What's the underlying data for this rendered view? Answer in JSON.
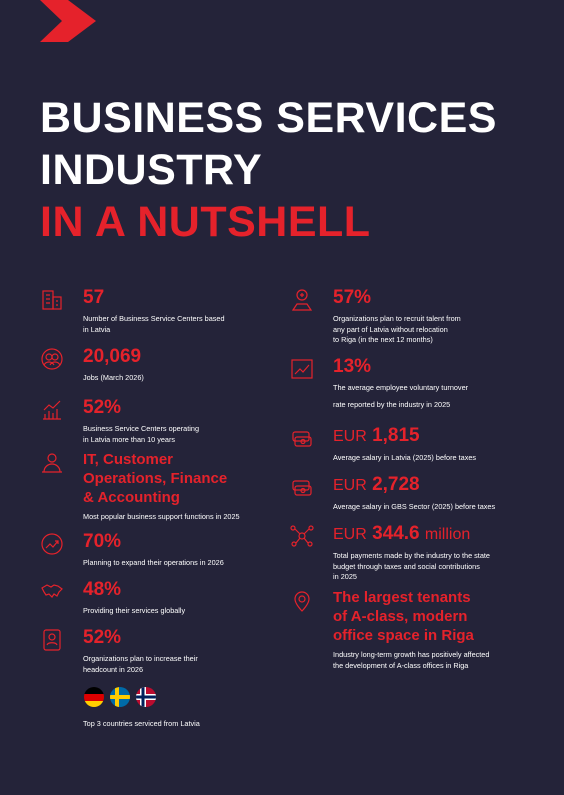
{
  "header": {
    "title_lines": [
      "BUSINESS SERVICES",
      "INDUSTRY",
      "IN A NUTSHELL"
    ]
  },
  "left": [
    {
      "value": "57",
      "description": [
        "Number of Business Service Centers based",
        "in Latvia"
      ]
    },
    {
      "value": "20,069",
      "description": [
        "Jobs (March 2026)"
      ]
    },
    {
      "value": "52%",
      "description": [
        "Business Service Centers operating",
        "in Latvia more than 10 years"
      ]
    },
    {
      "heading_lines": [
        "IT, Customer",
        "Operations, Finance",
        "& Accounting"
      ],
      "description": [
        "Most popular business support functions in 2025"
      ]
    },
    {
      "value": "70%",
      "description": [
        "Planning to expand their operations in 2026"
      ]
    },
    {
      "value": "48%",
      "description": [
        "Providing their services globally"
      ]
    },
    {
      "value": "52%",
      "description": [
        "Organizations plan to increase their",
        "headcount in 2026"
      ]
    }
  ],
  "countries_note": "Top 3 countries serviced from Latvia",
  "right": [
    {
      "value": "57%",
      "description": [
        "Organizations plan to recruit talent from",
        "any part of Latvia without relocation",
        "to Riga (in the next 12 months)"
      ]
    },
    {
      "value": "13%",
      "description": [
        "The average employee voluntary turnover",
        "rate reported by the industry in 2025"
      ]
    },
    {
      "prefix": "EUR",
      "value": "1,815",
      "description": [
        "Average salary in Latvia (2025) before taxes"
      ]
    },
    {
      "prefix": "EUR",
      "value": "2,728",
      "description": [
        "Average salary in GBS Sector (2025) before taxes"
      ]
    },
    {
      "prefix": "EUR",
      "value": "344.6",
      "suffix": "million",
      "description": [
        "Total payments made by the industry to the state",
        "budget through taxes and social contributions",
        "in 2025"
      ]
    },
    {
      "heading_lines": [
        "The largest tenants",
        "of A-class, modern",
        "office space in Riga"
      ],
      "description": [
        "Industry long-term growth has positively affected",
        "the development of A-class offices in Riga"
      ]
    }
  ]
}
